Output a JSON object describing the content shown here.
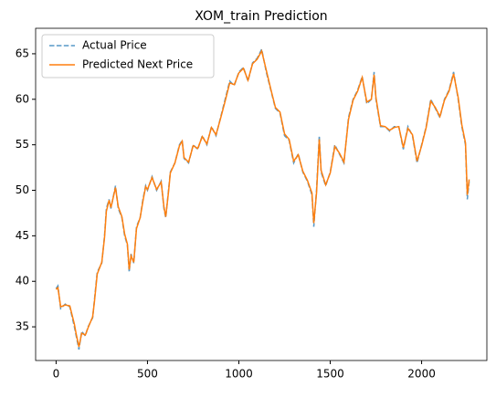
{
  "chart_data": {
    "type": "line",
    "title": "XOM_train Prediction",
    "x": [
      0,
      10,
      25,
      50,
      75,
      100,
      110,
      125,
      140,
      160,
      175,
      200,
      210,
      225,
      250,
      265,
      275,
      290,
      300,
      325,
      340,
      360,
      375,
      390,
      400,
      410,
      425,
      440,
      460,
      475,
      490,
      500,
      525,
      550,
      575,
      590,
      600,
      615,
      625,
      650,
      675,
      690,
      700,
      725,
      750,
      775,
      800,
      825,
      850,
      875,
      900,
      925,
      950,
      975,
      1000,
      1025,
      1050,
      1075,
      1100,
      1125,
      1150,
      1175,
      1200,
      1225,
      1250,
      1275,
      1300,
      1325,
      1350,
      1375,
      1400,
      1410,
      1425,
      1440,
      1450,
      1475,
      1500,
      1525,
      1550,
      1575,
      1600,
      1625,
      1650,
      1675,
      1700,
      1725,
      1740,
      1750,
      1775,
      1800,
      1825,
      1850,
      1875,
      1900,
      1925,
      1950,
      1975,
      2000,
      2025,
      2050,
      2075,
      2100,
      2125,
      2150,
      2175,
      2200,
      2220,
      2240,
      2250,
      2260
    ],
    "series": [
      {
        "name": "Actual Price",
        "color": "#1f77b4",
        "dash": true,
        "values": [
          39.2,
          39.5,
          37,
          37.5,
          37.2,
          35,
          34,
          32.5,
          34.5,
          34,
          35,
          36,
          38,
          41,
          42,
          45,
          48,
          49,
          48,
          50.5,
          48,
          47,
          45,
          44,
          41,
          43,
          42,
          46,
          47,
          49,
          50.5,
          50,
          51.5,
          50,
          51,
          48,
          47,
          50,
          52,
          53,
          55,
          55.5,
          53.5,
          53,
          55,
          54.5,
          56,
          55,
          57,
          56,
          58,
          60,
          62,
          61.5,
          63,
          63.5,
          62,
          64,
          64.5,
          65.5,
          63,
          61,
          59,
          58.5,
          56,
          55.5,
          53,
          54,
          52,
          51,
          49.5,
          46,
          50,
          56,
          52,
          50.5,
          52,
          55,
          54,
          53,
          58,
          60,
          61,
          62.5,
          59.5,
          60,
          63,
          60,
          57,
          57,
          56.5,
          57,
          57,
          54.5,
          57,
          56,
          53,
          55,
          57,
          60,
          59,
          58,
          60,
          61,
          63,
          60,
          57,
          55,
          49,
          51
        ]
      },
      {
        "name": "Predicted Next Price",
        "color": "#ff7f0e",
        "dash": false,
        "values": [
          39.1,
          39.3,
          37.2,
          37.4,
          37.3,
          35.3,
          34.2,
          32.8,
          34.3,
          34.1,
          34.9,
          36.1,
          37.8,
          40.8,
          42.1,
          44.8,
          47.7,
          48.9,
          48.1,
          50.3,
          48.2,
          47.1,
          45.2,
          44.1,
          41.3,
          42.8,
          42.1,
          45.8,
          47,
          48.8,
          50.4,
          50.1,
          51.4,
          50.1,
          50.9,
          48.2,
          47.1,
          49.8,
          51.9,
          53,
          54.9,
          55.4,
          53.6,
          53.1,
          54.9,
          54.6,
          55.9,
          55.1,
          56.9,
          56.1,
          57.9,
          59.8,
          61.8,
          61.6,
          62.9,
          63.4,
          62.1,
          63.9,
          64.4,
          65.3,
          63.2,
          61.1,
          59.1,
          58.6,
          56.2,
          55.6,
          53.2,
          53.9,
          52.1,
          51.1,
          49.7,
          46.4,
          49.7,
          55.6,
          52.2,
          50.6,
          51.9,
          54.8,
          54.1,
          53.1,
          57.8,
          59.9,
          60.9,
          62.4,
          59.7,
          60,
          62.7,
          60.2,
          57.1,
          57,
          56.6,
          56.9,
          57,
          54.7,
          56.8,
          56.1,
          53.2,
          54.9,
          56.9,
          59.8,
          59.1,
          58.1,
          59.9,
          60.9,
          62.8,
          60.2,
          57.2,
          55.2,
          49.5,
          51.2
        ]
      }
    ],
    "xlim": [
      -112,
      2357
    ],
    "ylim": [
      31.3,
      67.8
    ],
    "xticks": [
      0,
      500,
      1000,
      1500,
      2000
    ],
    "yticks": [
      35,
      40,
      45,
      50,
      55,
      60,
      65
    ],
    "grid": false,
    "legend": "upper left"
  }
}
